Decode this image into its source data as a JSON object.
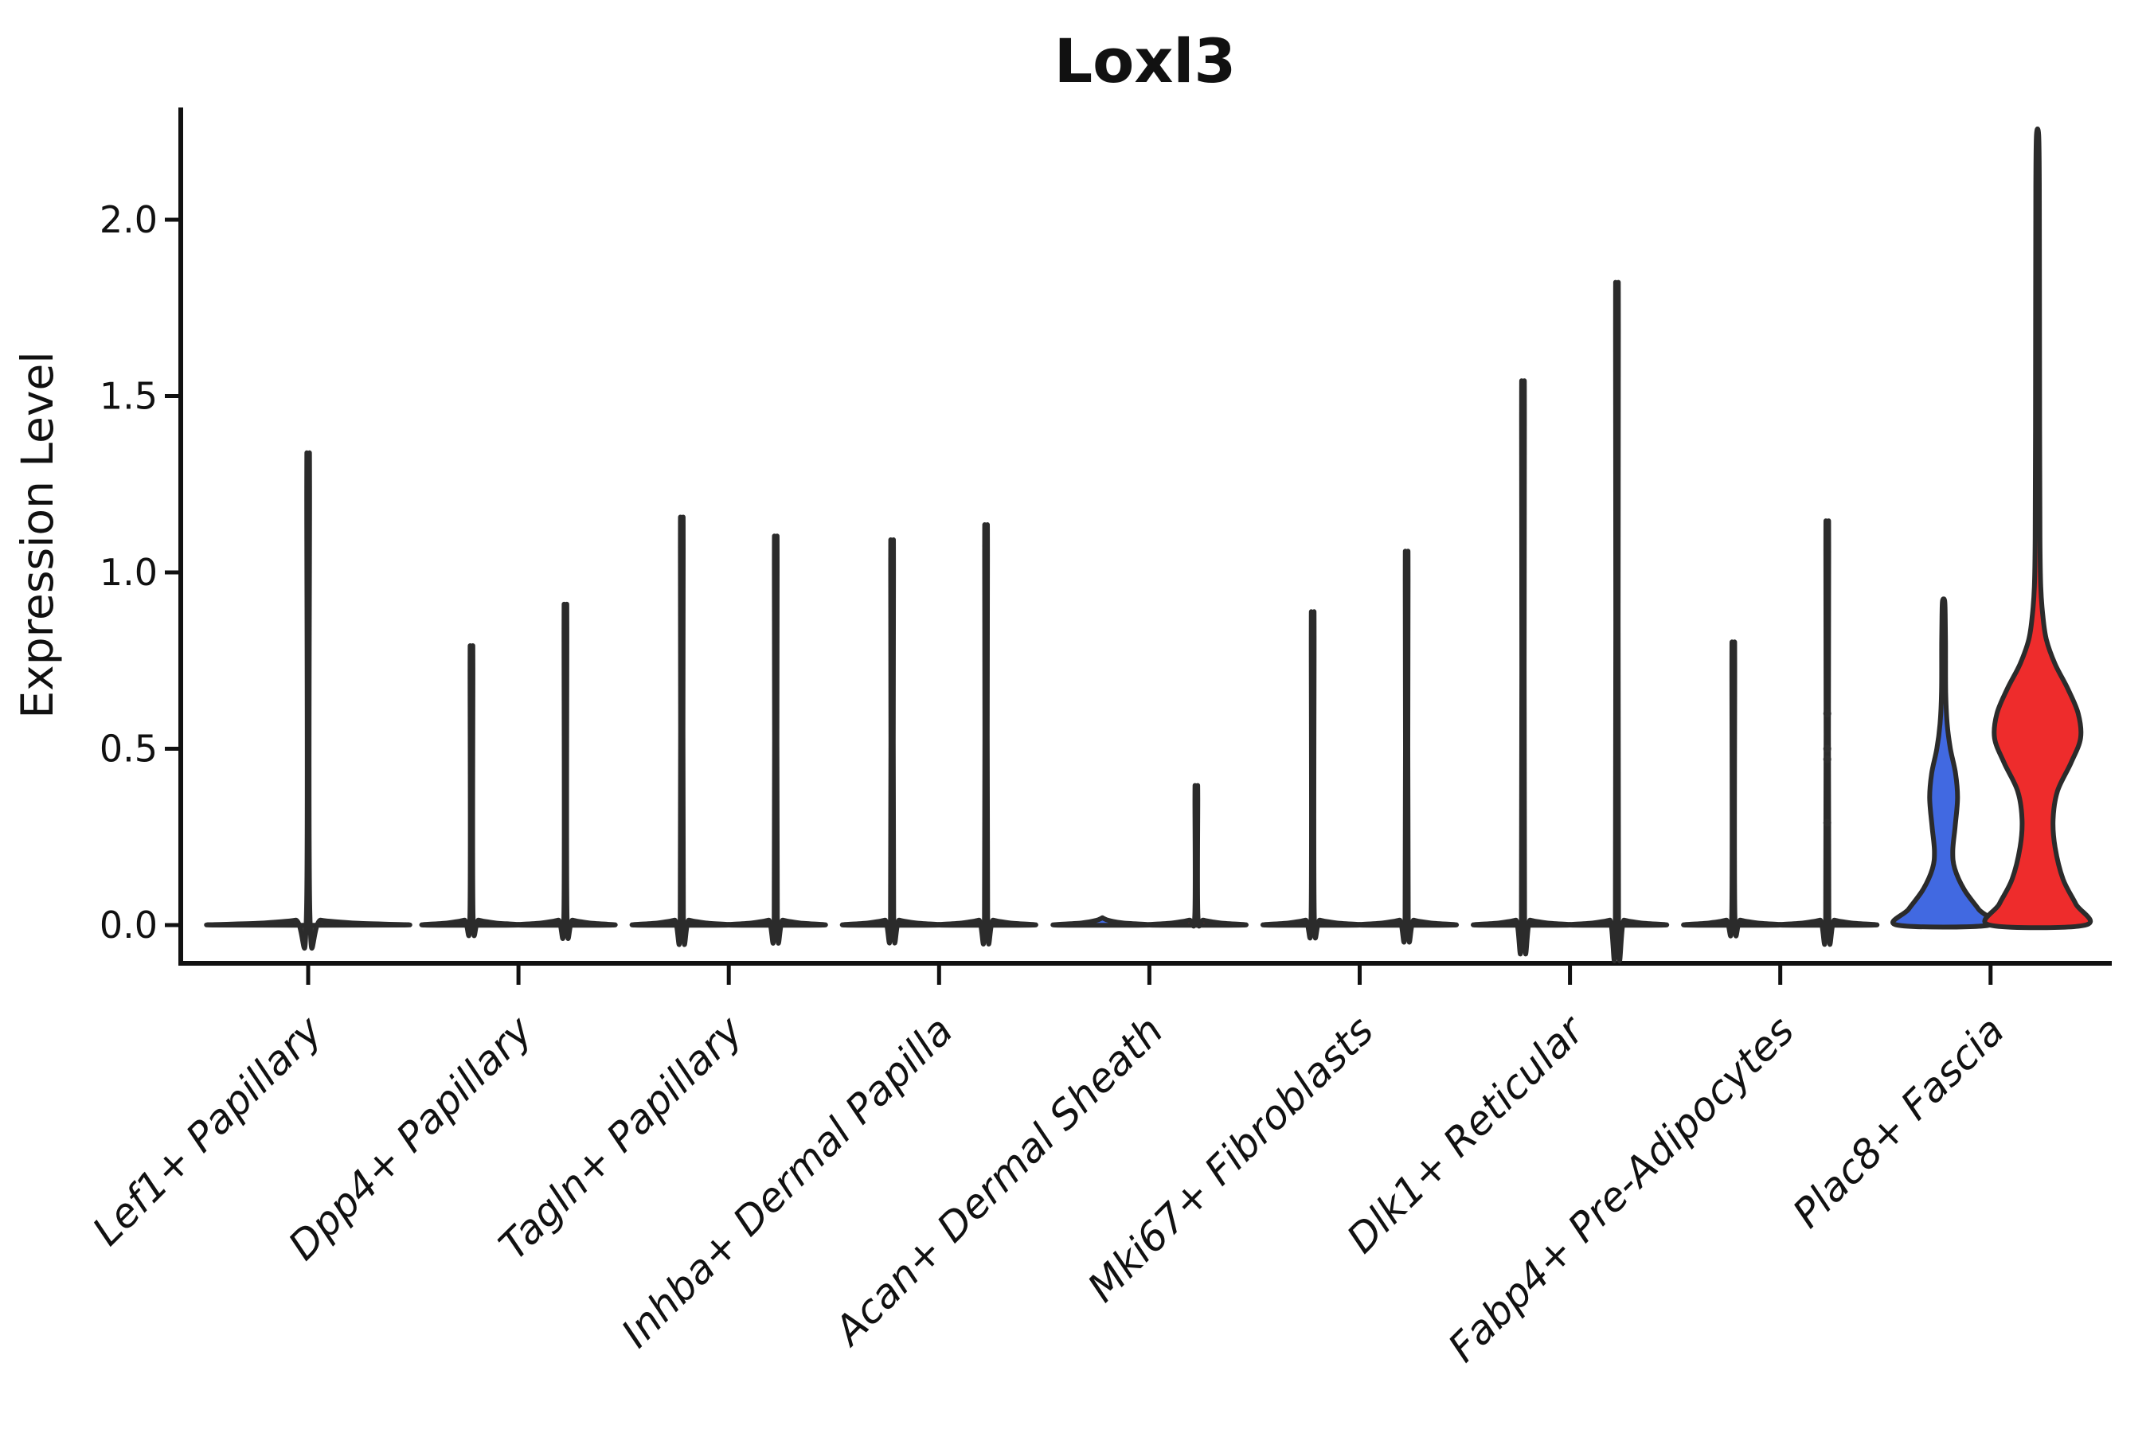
{
  "chart_data": {
    "type": "violin",
    "title": "Loxl3",
    "xlabel": "",
    "ylabel": "Expression Level",
    "ylim": [
      -0.11,
      2.32
    ],
    "grid": false,
    "legend": "none",
    "y_ticks": {
      "values": [
        0.0,
        0.5,
        1.0,
        1.5,
        2.0
      ],
      "labels": [
        "0.0",
        "0.5",
        "1.0",
        "1.5",
        "2.0"
      ]
    },
    "categories": [
      "Lef1+ Papillary",
      "Dpp4+ Papillary",
      "Tagln+ Papillary",
      "Inhba+ Dermal Papilla",
      "Acan+ Dermal Sheath",
      "Mki67+ Fibroblasts",
      "Dlk1+ Reticular",
      "Fabp4+ Pre-Adipocytes",
      "Plac8+ Fascia"
    ],
    "group_colors": {
      "left": "#4169E1",
      "right": "#EE2C2C"
    },
    "outline_color": "#2B2B2B",
    "violins": [
      {
        "category": "Lef1+ Papillary",
        "cat_index": 0,
        "side": "single",
        "color": "#3A3A3A",
        "max_expression": 1.27,
        "profile": [
          [
            0,
            120
          ],
          [
            0.005,
            64
          ],
          [
            0.014,
            16
          ],
          [
            0.028,
            2.2
          ],
          [
            1.24,
            1.8
          ],
          [
            1.27,
            1.2
          ]
        ]
      },
      {
        "category": "Dpp4+ Papillary",
        "cat_index": 1,
        "side": "left",
        "color": "#4169E1",
        "max_expression": 0.76,
        "profile": [
          [
            0,
            59
          ],
          [
            0.006,
            30
          ],
          [
            0.014,
            9
          ],
          [
            0.025,
            2
          ],
          [
            0.73,
            1.8
          ],
          [
            0.76,
            1.2
          ]
        ]
      },
      {
        "category": "Dpp4+ Papillary",
        "cat_index": 1,
        "side": "right",
        "color": "#EE2C2C",
        "max_expression": 0.87,
        "profile": [
          [
            0,
            59
          ],
          [
            0.006,
            30
          ],
          [
            0.014,
            9
          ],
          [
            0.025,
            2
          ],
          [
            0.84,
            1.8
          ],
          [
            0.87,
            1.2
          ]
        ]
      },
      {
        "category": "Tagln+ Papillary",
        "cat_index": 2,
        "side": "left",
        "color": "#4169E1",
        "max_expression": 1.1,
        "profile": [
          [
            0,
            59
          ],
          [
            0.006,
            30
          ],
          [
            0.014,
            9
          ],
          [
            0.025,
            2
          ],
          [
            1.07,
            1.8
          ],
          [
            1.1,
            1.2
          ]
        ]
      },
      {
        "category": "Tagln+ Papillary",
        "cat_index": 2,
        "side": "right",
        "color": "#EE2C2C",
        "max_expression": 1.05,
        "profile": [
          [
            0,
            59
          ],
          [
            0.006,
            30
          ],
          [
            0.014,
            9
          ],
          [
            0.025,
            2
          ],
          [
            1.02,
            1.8
          ],
          [
            1.05,
            1.2
          ]
        ]
      },
      {
        "category": "Inhba+ Dermal Papilla",
        "cat_index": 3,
        "side": "left",
        "color": "#4169E1",
        "max_expression": 1.04,
        "profile": [
          [
            0,
            59
          ],
          [
            0.006,
            30
          ],
          [
            0.014,
            9
          ],
          [
            0.025,
            2
          ],
          [
            1.01,
            1.8
          ],
          [
            1.04,
            1.2
          ]
        ]
      },
      {
        "category": "Inhba+ Dermal Papilla",
        "cat_index": 3,
        "side": "right",
        "color": "#EE2C2C",
        "max_expression": 1.08,
        "profile": [
          [
            0,
            59
          ],
          [
            0.006,
            30
          ],
          [
            0.014,
            9
          ],
          [
            0.025,
            2
          ],
          [
            1.05,
            1.8
          ],
          [
            1.08,
            1.2
          ]
        ]
      },
      {
        "category": "Acan+ Dermal Sheath",
        "cat_index": 4,
        "side": "left",
        "color": "#4169E1",
        "max_expression": 0.0,
        "profile": [
          [
            0,
            59
          ],
          [
            0.006,
            26
          ],
          [
            0.013,
            8
          ],
          [
            0.02,
            0.5
          ]
        ]
      },
      {
        "category": "Acan+ Dermal Sheath",
        "cat_index": 4,
        "side": "right",
        "color": "#EE2C2C",
        "max_expression": 0.39,
        "profile": [
          [
            0,
            59
          ],
          [
            0.006,
            30
          ],
          [
            0.014,
            9
          ],
          [
            0.025,
            2
          ],
          [
            0.36,
            1.8
          ],
          [
            0.39,
            1.2
          ]
        ]
      },
      {
        "category": "Mki67+ Fibroblasts",
        "cat_index": 5,
        "side": "left",
        "color": "#4169E1",
        "max_expression": 0.85,
        "profile": [
          [
            0,
            59
          ],
          [
            0.006,
            30
          ],
          [
            0.014,
            9
          ],
          [
            0.025,
            2
          ],
          [
            0.82,
            1.8
          ],
          [
            0.85,
            1.2
          ]
        ]
      },
      {
        "category": "Mki67+ Fibroblasts",
        "cat_index": 5,
        "side": "right",
        "color": "#EE2C2C",
        "max_expression": 1.01,
        "profile": [
          [
            0,
            59
          ],
          [
            0.006,
            30
          ],
          [
            0.014,
            9
          ],
          [
            0.025,
            2
          ],
          [
            0.98,
            1.8
          ],
          [
            1.01,
            1.2
          ]
        ]
      },
      {
        "category": "Dlk1+ Reticular",
        "cat_index": 6,
        "side": "left",
        "color": "#4169E1",
        "max_expression": 1.46,
        "profile": [
          [
            0,
            59
          ],
          [
            0.006,
            30
          ],
          [
            0.014,
            9
          ],
          [
            0.025,
            2
          ],
          [
            1.43,
            1.8
          ],
          [
            1.46,
            1.2
          ]
        ]
      },
      {
        "category": "Dlk1+ Reticular",
        "cat_index": 6,
        "side": "right",
        "color": "#EE2C2C",
        "max_expression": 1.72,
        "profile": [
          [
            0,
            59
          ],
          [
            0.006,
            30
          ],
          [
            0.014,
            9
          ],
          [
            0.025,
            2
          ],
          [
            1.69,
            1.8
          ],
          [
            1.72,
            1.2
          ]
        ]
      },
      {
        "category": "Fabp4+ Pre-Adipocytes",
        "cat_index": 7,
        "side": "left",
        "color": "#4169E1",
        "max_expression": 0.77,
        "profile": [
          [
            0,
            59
          ],
          [
            0.006,
            30
          ],
          [
            0.014,
            9
          ],
          [
            0.025,
            2
          ],
          [
            0.74,
            1.8
          ],
          [
            0.77,
            1.2
          ]
        ]
      },
      {
        "category": "Fabp4+ Pre-Adipocytes",
        "cat_index": 7,
        "side": "right",
        "color": "#EE2C2C",
        "max_expression": 1.09,
        "profile": [
          [
            0,
            59
          ],
          [
            0.006,
            30
          ],
          [
            0.014,
            9
          ],
          [
            0.025,
            2
          ],
          [
            1.06,
            1.8
          ],
          [
            1.09,
            1.2
          ]
        ],
        "jitter_points": [
          0.6,
          0.5,
          0.47,
          0.29
        ]
      },
      {
        "category": "Plac8+ Fascia",
        "cat_index": 8,
        "side": "left",
        "color": "#4169E1",
        "max_expression": 0.92,
        "profile": [
          [
            0,
            58
          ],
          [
            0.045,
            44
          ],
          [
            0.1,
            26
          ],
          [
            0.16,
            14
          ],
          [
            0.21,
            11.5
          ],
          [
            0.28,
            14.5
          ],
          [
            0.36,
            17.5
          ],
          [
            0.43,
            15
          ],
          [
            0.5,
            8.5
          ],
          [
            0.57,
            4.5
          ],
          [
            0.66,
            2.6
          ],
          [
            0.8,
            2.4
          ],
          [
            0.88,
            2
          ],
          [
            0.92,
            1.3
          ]
        ]
      },
      {
        "category": "Plac8+ Fascia",
        "cat_index": 8,
        "side": "right",
        "color": "#EE2C2C",
        "max_expression": 2.24,
        "profile": [
          [
            0,
            60
          ],
          [
            0.06,
            48
          ],
          [
            0.13,
            32
          ],
          [
            0.22,
            22
          ],
          [
            0.3,
            19.5
          ],
          [
            0.38,
            25
          ],
          [
            0.46,
            42
          ],
          [
            0.53,
            54
          ],
          [
            0.6,
            51
          ],
          [
            0.67,
            38
          ],
          [
            0.74,
            22
          ],
          [
            0.81,
            11
          ],
          [
            0.88,
            6.5
          ],
          [
            0.96,
            4
          ],
          [
            1.1,
            3
          ],
          [
            1.4,
            2.6
          ],
          [
            1.8,
            2.4
          ],
          [
            2.1,
            2.2
          ],
          [
            2.24,
            1.4
          ]
        ]
      }
    ]
  }
}
